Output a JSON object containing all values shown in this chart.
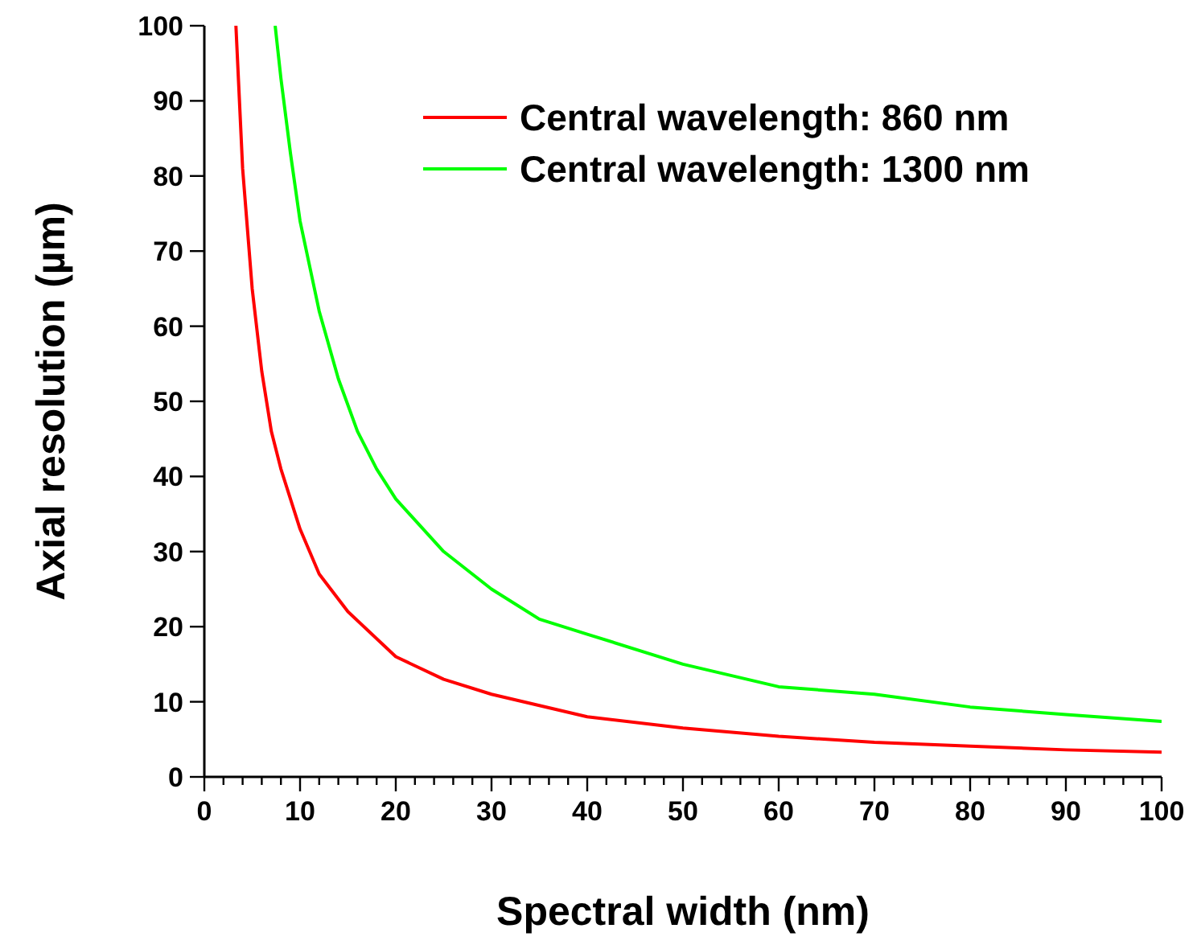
{
  "chart_data": {
    "type": "line",
    "xlabel": "Spectral width (nm)",
    "ylabel": "Axial resolution (µm)",
    "xlim": [
      0,
      100
    ],
    "ylim": [
      0,
      100
    ],
    "xticks": [
      0,
      {
        "value": 2,
        "label": null
      },
      {
        "value": 4,
        "label": null
      },
      {
        "value": 6,
        "label": null
      },
      {
        "value": 8,
        "label": null
      },
      10,
      {
        "value": 12,
        "label": null
      },
      {
        "value": 14,
        "label": null
      },
      {
        "value": 16,
        "label": null
      },
      {
        "value": 18,
        "label": null
      },
      20,
      {
        "value": 22,
        "label": null
      },
      {
        "value": 24,
        "label": null
      },
      {
        "value": 26,
        "label": null
      },
      {
        "value": 28,
        "label": null
      },
      30,
      {
        "value": 32,
        "label": null
      },
      {
        "value": 34,
        "label": null
      },
      {
        "value": 36,
        "label": null
      },
      {
        "value": 38,
        "label": null
      },
      40,
      {
        "value": 42,
        "label": null
      },
      {
        "value": 44,
        "label": null
      },
      {
        "value": 46,
        "label": null
      },
      {
        "value": 48,
        "label": null
      },
      50,
      {
        "value": 52,
        "label": null
      },
      {
        "value": 54,
        "label": null
      },
      {
        "value": 56,
        "label": null
      },
      {
        "value": 58,
        "label": null
      },
      60,
      {
        "value": 62,
        "label": null
      },
      {
        "value": 64,
        "label": null
      },
      {
        "value": 66,
        "label": null
      },
      {
        "value": 68,
        "label": null
      },
      70,
      {
        "value": 72,
        "label": null
      },
      {
        "value": 74,
        "label": null
      },
      {
        "value": 76,
        "label": null
      },
      {
        "value": 78,
        "label": null
      },
      80,
      {
        "value": 82,
        "label": null
      },
      {
        "value": 84,
        "label": null
      },
      {
        "value": 86,
        "label": null
      },
      {
        "value": 88,
        "label": null
      },
      90,
      {
        "value": 92,
        "label": null
      },
      {
        "value": 94,
        "label": null
      },
      {
        "value": 96,
        "label": null
      },
      {
        "value": 98,
        "label": null
      },
      100
    ],
    "yticks": [
      0,
      10,
      20,
      30,
      40,
      50,
      60,
      70,
      80,
      90,
      100
    ],
    "grid": false,
    "legend": "top right",
    "marker": "none",
    "line_style": "solid",
    "series": [
      {
        "name": "Central wavelength: 860 nm",
        "color": "#ff0000",
        "x": [
          3.3,
          4,
          5,
          6,
          7,
          8,
          10,
          12,
          15,
          20,
          25,
          30,
          40,
          50,
          60,
          70,
          80,
          90,
          100
        ],
        "values": [
          100,
          81,
          65,
          54,
          46,
          41,
          33,
          27,
          22,
          16,
          13,
          11,
          8,
          6.5,
          5.4,
          4.6,
          4.1,
          3.6,
          3.3
        ]
      },
      {
        "name": "Central wavelength: 1300 nm",
        "color": "#00ff00",
        "x": [
          7.4,
          8,
          9,
          10,
          12,
          14,
          16,
          18,
          20,
          25,
          30,
          35,
          40,
          50,
          60,
          70,
          80,
          90,
          100
        ],
        "values": [
          100,
          93,
          83,
          74,
          62,
          53,
          46,
          41,
          37,
          30,
          25,
          21,
          19,
          15,
          12,
          11,
          9.3,
          8.3,
          7.4
        ]
      }
    ]
  }
}
